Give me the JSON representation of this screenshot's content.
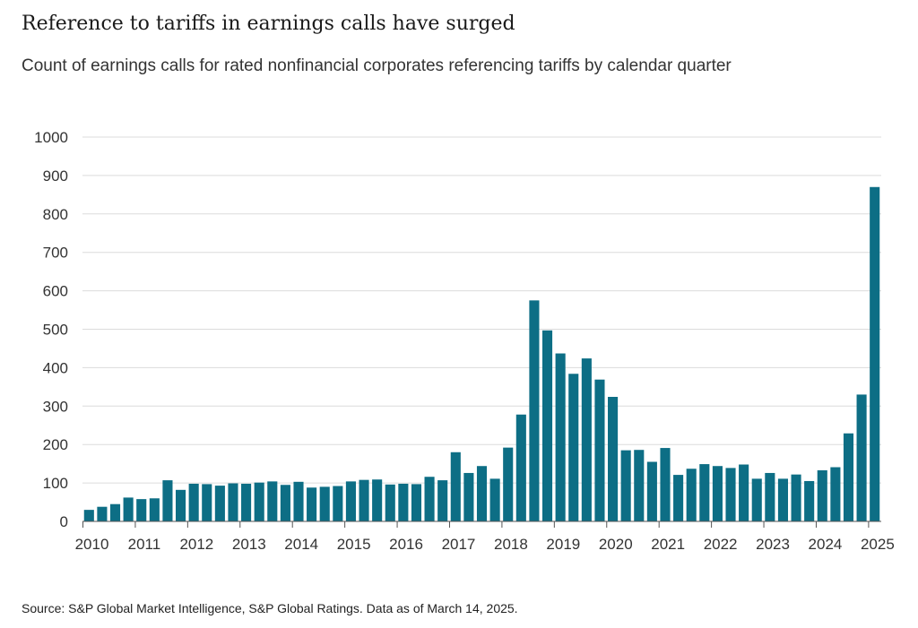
{
  "header": {
    "title": "Reference to tariffs in earnings calls have surged",
    "subtitle": "Count of earnings calls for rated nonfinancial corporates referencing tariffs by calendar quarter"
  },
  "footer": {
    "source": "Source: S&P Global Market Intelligence, S&P Global Ratings. Data as of March 14, 2025."
  },
  "colors": {
    "bar": "#0d6e85",
    "grid": "#dcdcdc",
    "axis": "#555555"
  },
  "chart_data": {
    "type": "bar",
    "title": "Reference to tariffs in earnings calls have surged",
    "subtitle": "Count of earnings calls for rated nonfinancial corporates referencing tariffs by calendar quarter",
    "xlabel": "",
    "ylabel": "",
    "ylim": [
      0,
      1000
    ],
    "y_ticks": [
      0,
      100,
      200,
      300,
      400,
      500,
      600,
      700,
      800,
      900,
      1000
    ],
    "x_tick_labels": [
      "2010",
      "2011",
      "2012",
      "2013",
      "2014",
      "2015",
      "2016",
      "2017",
      "2018",
      "2019",
      "2020",
      "2021",
      "2022",
      "2023",
      "2024",
      "2025"
    ],
    "grid": true,
    "legend": "none",
    "categories": [
      "2010 Q1",
      "2010 Q2",
      "2010 Q3",
      "2010 Q4",
      "2011 Q1",
      "2011 Q2",
      "2011 Q3",
      "2011 Q4",
      "2012 Q1",
      "2012 Q2",
      "2012 Q3",
      "2012 Q4",
      "2013 Q1",
      "2013 Q2",
      "2013 Q3",
      "2013 Q4",
      "2014 Q1",
      "2014 Q2",
      "2014 Q3",
      "2014 Q4",
      "2015 Q1",
      "2015 Q2",
      "2015 Q3",
      "2015 Q4",
      "2016 Q1",
      "2016 Q2",
      "2016 Q3",
      "2016 Q4",
      "2017 Q1",
      "2017 Q2",
      "2017 Q3",
      "2017 Q4",
      "2018 Q1",
      "2018 Q2",
      "2018 Q3",
      "2018 Q4",
      "2019 Q1",
      "2019 Q2",
      "2019 Q3",
      "2019 Q4",
      "2020 Q1",
      "2020 Q2",
      "2020 Q3",
      "2020 Q4",
      "2021 Q1",
      "2021 Q2",
      "2021 Q3",
      "2021 Q4",
      "2022 Q1",
      "2022 Q2",
      "2022 Q3",
      "2022 Q4",
      "2023 Q1",
      "2023 Q2",
      "2023 Q3",
      "2023 Q4",
      "2024 Q1",
      "2024 Q2",
      "2024 Q3",
      "2024 Q4",
      "2025 Q1"
    ],
    "values": [
      30,
      38,
      45,
      62,
      58,
      60,
      107,
      82,
      98,
      97,
      93,
      99,
      98,
      101,
      104,
      95,
      103,
      88,
      90,
      92,
      104,
      108,
      109,
      96,
      98,
      97,
      116,
      107,
      180,
      126,
      144,
      111,
      192,
      278,
      575,
      497,
      437,
      384,
      424,
      369,
      324,
      185,
      186,
      155,
      191,
      121,
      137,
      149,
      144,
      139,
      148,
      111,
      126,
      111,
      122,
      105,
      133,
      141,
      229,
      330,
      870
    ]
  }
}
